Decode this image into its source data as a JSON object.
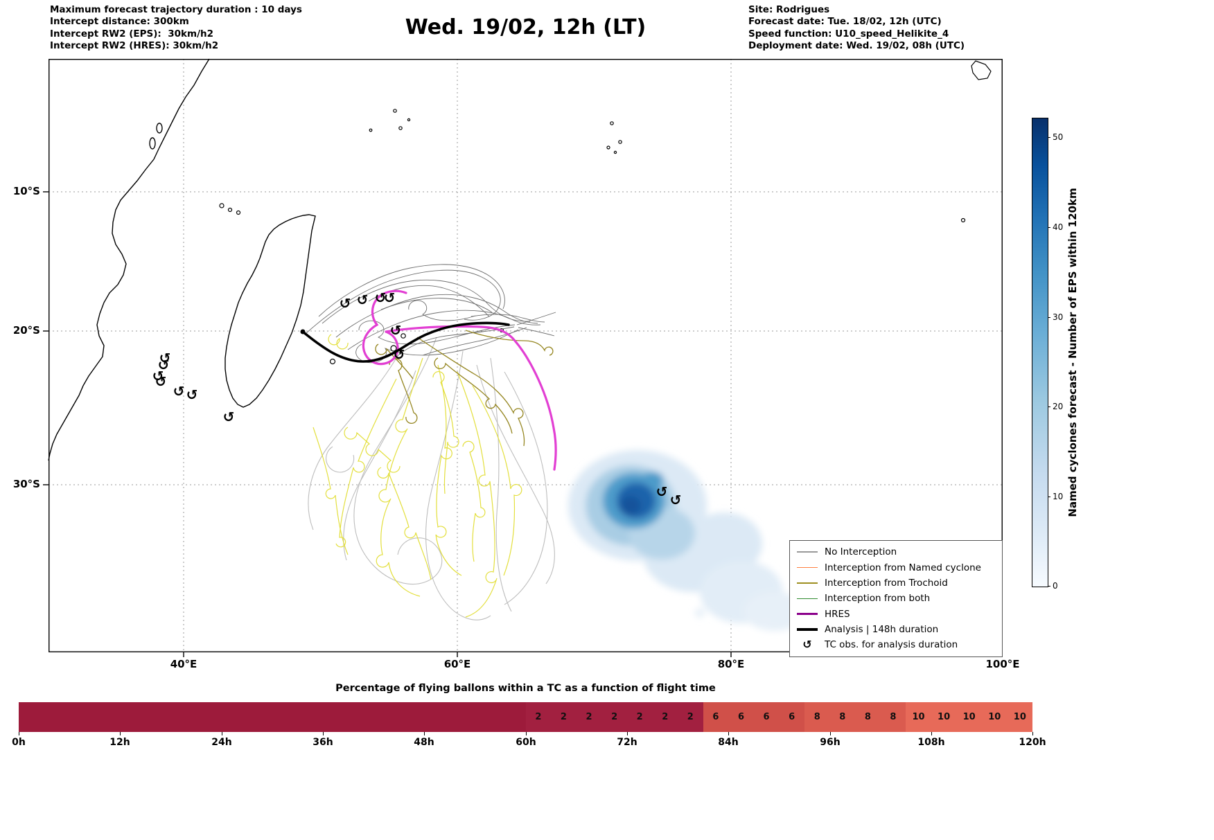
{
  "header": {
    "left_lines": [
      "Maximum forecast trajectory duration : 10 days",
      "Intercept distance: 300km",
      "Intercept RW2 (EPS):  30km/h2",
      "Intercept RW2 (HRES): 30km/h2"
    ],
    "title": "Wed. 19/02, 12h (LT)",
    "right_lines": [
      "Site: Rodrigues",
      "Forecast date: Tue. 18/02, 12h (UTC)",
      "Speed function: U10_speed_Helikite_4",
      "Deployment date: Wed. 19/02, 08h (UTC)"
    ]
  },
  "map": {
    "x_ticks": [
      "40°E",
      "60°E",
      "80°E",
      "100°E"
    ],
    "y_ticks": [
      "10°S",
      "20°S",
      "30°S"
    ],
    "tc_glyph": "↺",
    "legend": {
      "items": [
        {
          "label": "No Interception",
          "color": "#999999",
          "lw": 1.5
        },
        {
          "label": "Interception from Named cyclone",
          "color": "#ff8040",
          "lw": 1.5
        },
        {
          "label": "Interception from Trochoid",
          "color": "#9d8f1f",
          "lw": 1.5
        },
        {
          "label": "Interception from both",
          "color": "#2e8b2e",
          "lw": 1.5
        },
        {
          "label": "HRES",
          "color": "#8b008b",
          "lw": 3.5
        },
        {
          "label": "Analysis | 148h duration",
          "color": "#000000",
          "lw": 3.5
        },
        {
          "label": "TC obs. for analysis duration",
          "glyph": "↺"
        }
      ]
    }
  },
  "colorbar": {
    "label": "Named cyclones forecast - Number of EPS within 120km",
    "ticks": [
      0,
      10,
      20,
      30,
      40,
      50
    ]
  },
  "chart_data": [
    {
      "type": "map",
      "title": "Wed. 19/02, 12h (LT)",
      "lon_range_deg_E": [
        30,
        100
      ],
      "lat_range_deg_S": [
        0,
        41
      ],
      "grid": true,
      "legend_position": "lower right",
      "legend_entries": [
        "No Interception",
        "Interception from Named cyclone",
        "Interception from Trochoid",
        "Interception from both",
        "HRES",
        "Analysis | 148h duration",
        "TC obs. for analysis duration"
      ],
      "analysis_track_lon_lat": [
        [
          48.9,
          -20.0
        ],
        [
          51.0,
          -21.3
        ],
        [
          53.2,
          -21.9
        ],
        [
          55.6,
          -21.3
        ],
        [
          57.3,
          -20.3
        ],
        [
          58.6,
          -19.7
        ],
        [
          60.8,
          -19.5
        ],
        [
          62.5,
          -19.4
        ],
        [
          63.9,
          -19.5
        ]
      ],
      "hres_track_lon_lat": [
        [
          56.4,
          -17.3
        ],
        [
          54.1,
          -18.1
        ],
        [
          54.9,
          -22.1
        ],
        [
          58.6,
          -19.7
        ],
        [
          62.4,
          -19.8
        ],
        [
          66.0,
          -23.1
        ],
        [
          67.2,
          -29.0
        ]
      ],
      "tc_obs_lon_lat": [
        [
          38.8,
          -21.9
        ],
        [
          38.7,
          -22.4
        ],
        [
          38.3,
          -23.0
        ],
        [
          38.5,
          -23.4
        ],
        [
          39.8,
          -24.0
        ],
        [
          40.8,
          -24.2
        ],
        [
          43.5,
          -25.7
        ],
        [
          52.0,
          -18.0
        ],
        [
          53.2,
          -17.8
        ],
        [
          54.5,
          -17.6
        ],
        [
          55.2,
          -17.6
        ],
        [
          55.7,
          -20.0
        ],
        [
          56.0,
          -21.6
        ],
        [
          75.1,
          -30.5
        ],
        [
          76.1,
          -31.0
        ]
      ],
      "eps_density": {
        "center_lon_lat": [
          74.5,
          -30.8
        ],
        "colorbar_max": 52
      }
    },
    {
      "type": "heatmap",
      "title": "Percentage of flying ballons within a TC as a function of flight time",
      "x_ticks": [
        "0h",
        "12h",
        "24h",
        "36h",
        "48h",
        "60h",
        "72h",
        "84h",
        "96h",
        "108h",
        "120h"
      ],
      "segment_hours": 3,
      "values": [
        0,
        0,
        0,
        0,
        0,
        0,
        0,
        0,
        0,
        0,
        0,
        0,
        0,
        0,
        0,
        0,
        0,
        0,
        0,
        0,
        2,
        2,
        2,
        2,
        2,
        2,
        2,
        6,
        6,
        6,
        6,
        8,
        8,
        8,
        8,
        10,
        10,
        10,
        10,
        10
      ],
      "value_colors": {
        "0": "#9d1b3b",
        "2": "#a22040",
        "6": "#d05049",
        "8": "#da5b4f",
        "10": "#e76a59"
      }
    }
  ]
}
